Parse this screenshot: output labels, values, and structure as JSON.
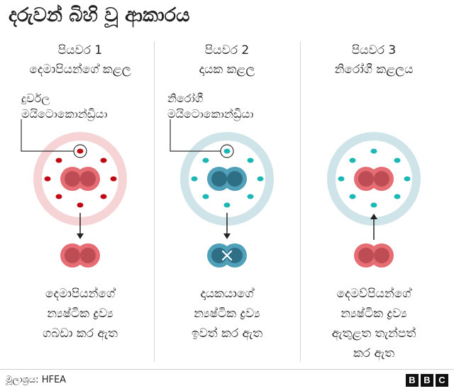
{
  "title": "දරුවන් බිහි වූ ආකාරය",
  "colors": {
    "faulty": "#bf0a14",
    "healthy": "#1ab7b4",
    "nucleus_pink": "#e56d73",
    "nucleus_pink_dark": "#bd4c54",
    "nucleus_blue": "#51a0b9",
    "nucleus_blue_dark": "#2f6f86",
    "ring_pink": "#f6d3d5",
    "ring_blue": "#cfe4e8"
  },
  "columns": [
    {
      "step": "පියවර 1",
      "cell": "දෙමාපියන්ගේ කළල",
      "callout": [
        "දුර්වල",
        "මයිටොකොන්ඩ්‍රියා"
      ],
      "desc": [
        "දෙමාපියන්ගේ",
        "න්‍යෂ්ටික ද්‍රව්‍ය",
        "ගබඩා කර ඇත"
      ]
    },
    {
      "step": "පියවර 2",
      "cell": "දායක කළල",
      "callout": [
        "නිරෝගී",
        "මයිටොකොන්ඩ්‍රියා"
      ],
      "desc": [
        "දායකයාගේ",
        "න්‍යෂ්ටික ද්‍රව්‍ය",
        "ඉවත් කර ඇත"
      ]
    },
    {
      "step": "පියවර 3",
      "cell": "නිරෝගී කළලය",
      "callout": [],
      "desc": [
        "දෙමව්පියන්ගේ",
        "න්‍යෂ්ටික ද්‍රව්‍ය",
        "ඇතුළත තැන්පත්",
        "කර ඇත"
      ]
    }
  ],
  "source": "මූලාශ්‍රය: HFEA",
  "logo": [
    "B",
    "B",
    "C"
  ]
}
